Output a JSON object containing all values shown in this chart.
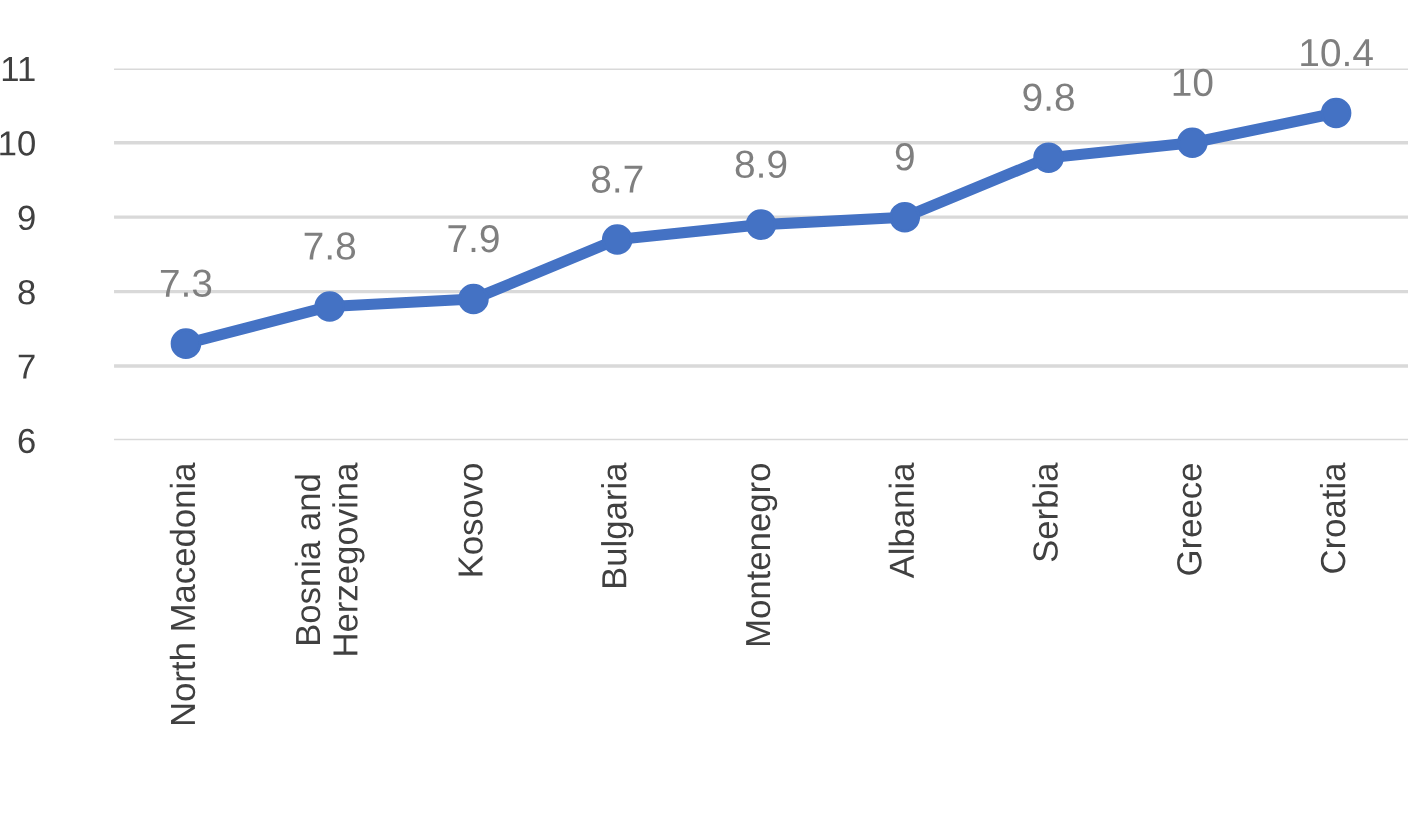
{
  "chart_data": {
    "type": "line",
    "categories": [
      "North Macedonia",
      "Bosnia and Herzegovina",
      "Kosovo",
      "Bulgaria",
      "Montenegro",
      "Albania",
      "Serbia",
      "Greece",
      "Croatia"
    ],
    "series": [
      {
        "color": "#4472c4",
        "values": [
          7.3,
          7.8,
          7.9,
          8.7,
          8.9,
          9,
          9.8,
          10,
          10.4
        ]
      }
    ],
    "ylim": [
      6,
      11
    ],
    "yticks": [
      6,
      7,
      8,
      9,
      10,
      11
    ],
    "grid": "y",
    "marker": "circle",
    "line_style": "solid",
    "data_labels": true,
    "legend": false
  }
}
